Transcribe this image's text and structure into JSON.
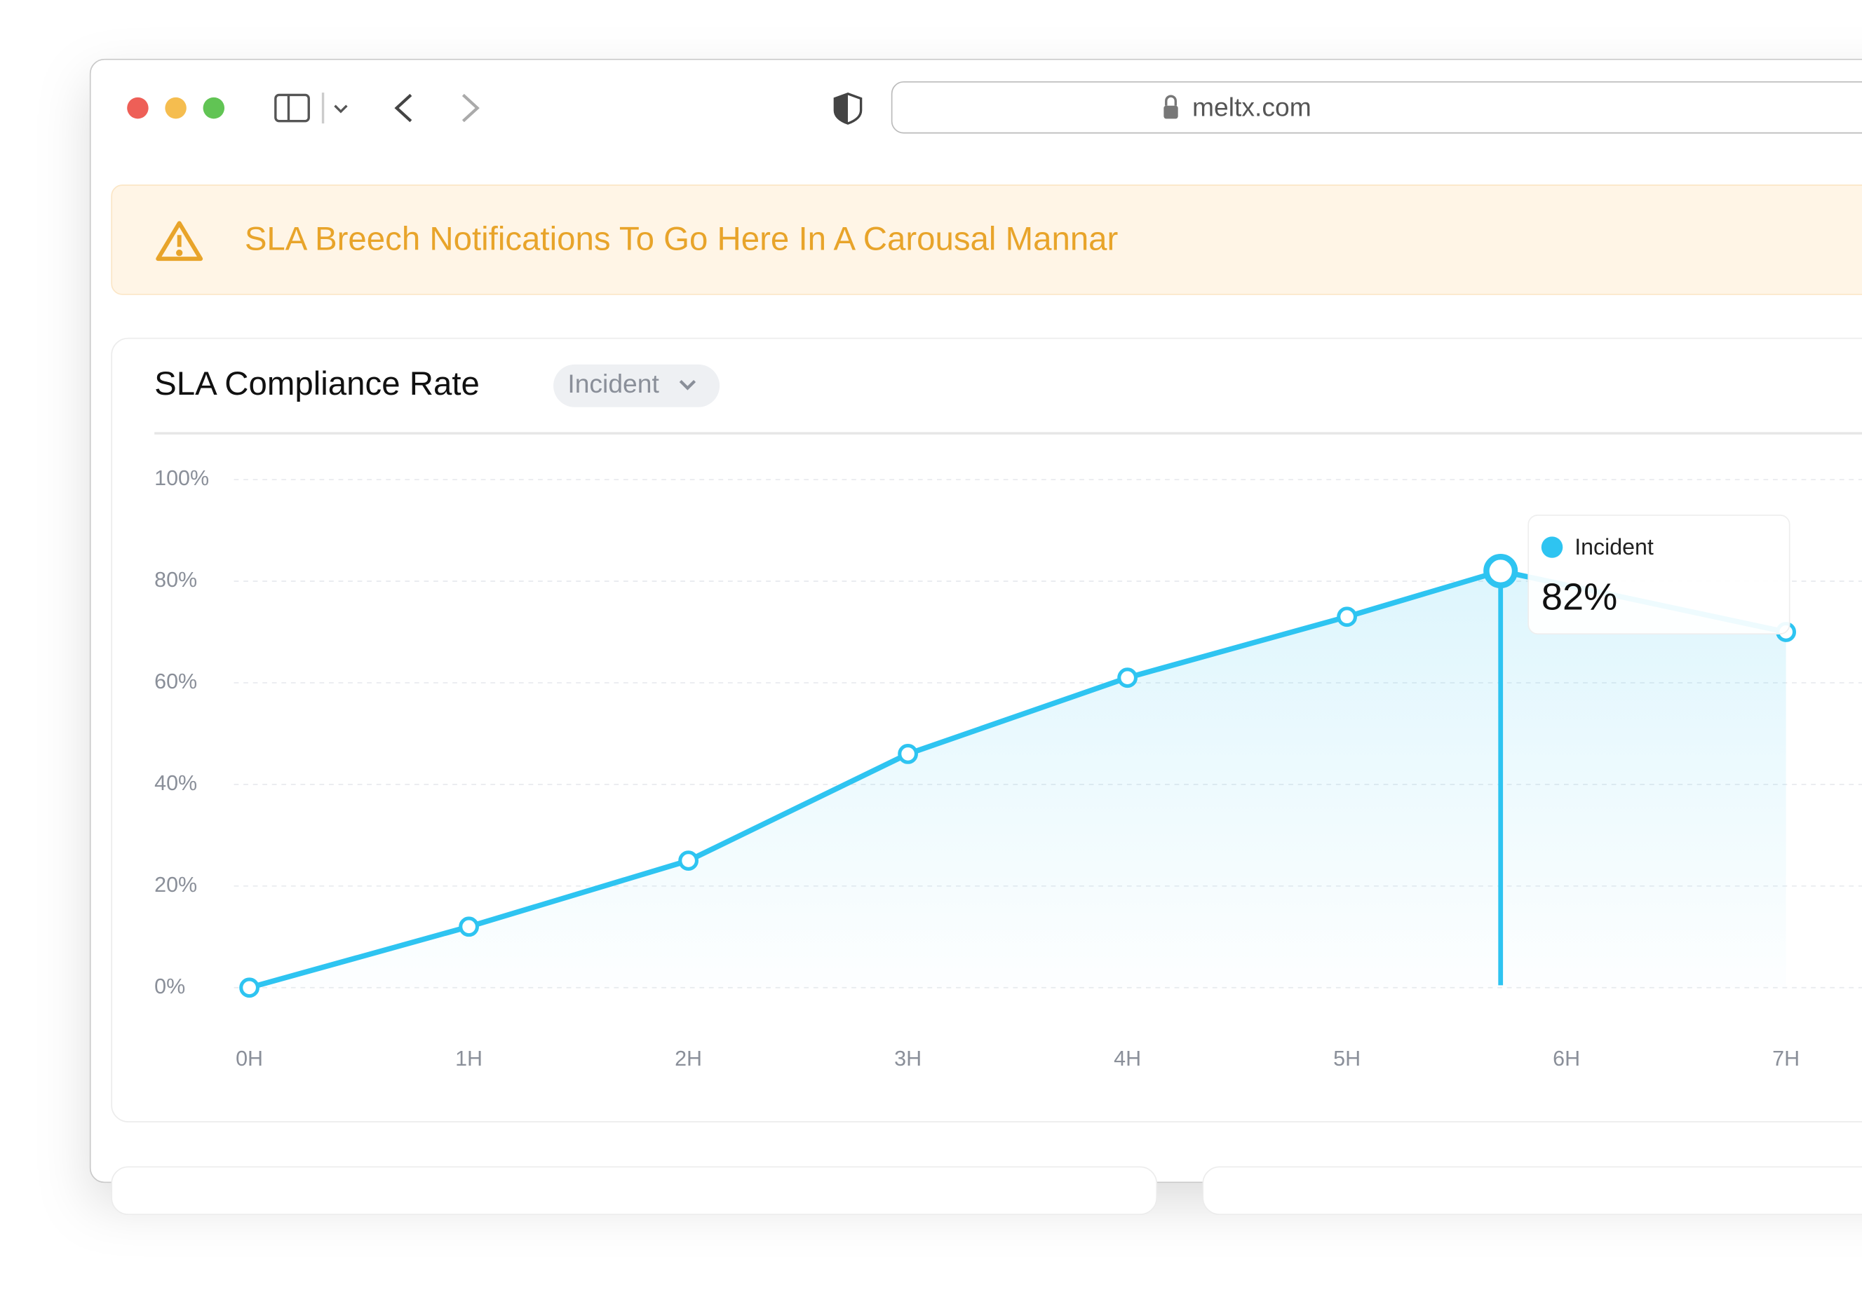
{
  "browser": {
    "url": "meltx.com"
  },
  "banner": {
    "text": "SLA Breech Notifications To Go Here In A Carousal Mannar"
  },
  "card": {
    "title": "SLA Compliance Rate",
    "filter": "Incident"
  },
  "chart_data": {
    "type": "line",
    "x": [
      0,
      1,
      2,
      3,
      4,
      5,
      5.7,
      7
    ],
    "series": [
      {
        "name": "Incident",
        "color": "#2ec4f1",
        "values": [
          0,
          12,
          25,
          46,
          61,
          73,
          82,
          70
        ]
      }
    ],
    "xlim": [
      0,
      7
    ],
    "xticks": [
      {
        "value": 0,
        "label": "0H"
      },
      {
        "value": 1,
        "label": "1H"
      },
      {
        "value": 2,
        "label": "2H"
      },
      {
        "value": 3,
        "label": "3H"
      },
      {
        "value": 4,
        "label": "4H"
      },
      {
        "value": 5,
        "label": "5H"
      },
      {
        "value": 6,
        "label": "6H"
      },
      {
        "value": 7,
        "label": "7H"
      }
    ],
    "ylim": [
      0,
      100
    ],
    "yticks": [
      {
        "value": 0,
        "label": "0%"
      },
      {
        "value": 20,
        "label": "20%"
      },
      {
        "value": 40,
        "label": "40%"
      },
      {
        "value": 60,
        "label": "60%"
      },
      {
        "value": 80,
        "label": "80%"
      },
      {
        "value": 100,
        "label": "100%"
      }
    ],
    "grid": true,
    "tooltip": {
      "series": "Incident",
      "value": 82,
      "value_label": "82%"
    }
  }
}
